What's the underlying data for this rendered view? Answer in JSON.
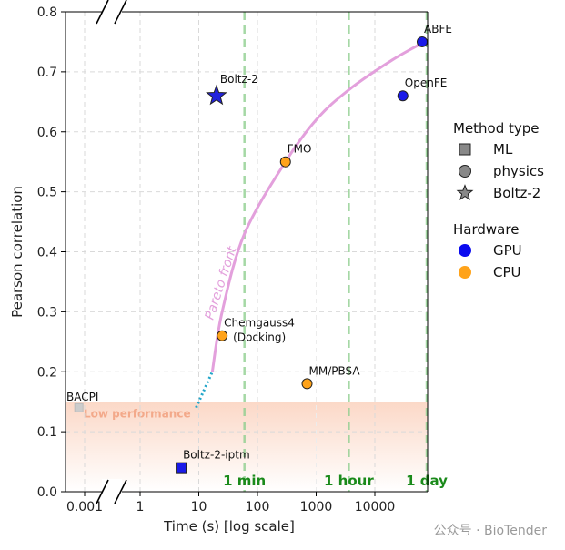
{
  "chart_data": {
    "type": "scatter",
    "title": "",
    "xlabel": "Time (s) [log scale]",
    "ylabel": "Pearson correlation",
    "xscale": "log (broken axis)",
    "ylim": [
      0,
      0.8
    ],
    "xticks": [
      "0.001",
      "1",
      "10",
      "100",
      "1000",
      "10000"
    ],
    "yticks": [
      "0.0",
      "0.1",
      "0.2",
      "0.3",
      "0.4",
      "0.5",
      "0.6",
      "0.7",
      "0.8"
    ],
    "grid": true,
    "points": [
      {
        "label": "BACPI",
        "x": 0.0005,
        "y": 0.14,
        "method": "ML",
        "hardware": "GPU",
        "color": "#cccccc"
      },
      {
        "label": "Boltz-2",
        "x": 20,
        "y": 0.66,
        "method": "Boltz-2",
        "hardware": "GPU",
        "color": "#2222dd"
      },
      {
        "label": "Boltz-2-iptm",
        "x": 5,
        "y": 0.04,
        "method": "ML",
        "hardware": "GPU",
        "color": "#1a1ae8"
      },
      {
        "label": "Chemgauss4",
        "label2": "(Docking)",
        "x": 25,
        "y": 0.26,
        "method": "physics",
        "hardware": "CPU",
        "color": "#ffa31a"
      },
      {
        "label": "FMO",
        "x": 300,
        "y": 0.55,
        "method": "physics",
        "hardware": "CPU",
        "color": "#ffa31a"
      },
      {
        "label": "MM/PBSA",
        "x": 700,
        "y": 0.18,
        "method": "physics",
        "hardware": "CPU",
        "color": "#ffa31a"
      },
      {
        "label": "OpenFE",
        "x": 30000,
        "y": 0.66,
        "method": "physics",
        "hardware": "GPU",
        "color": "#1a1ae8"
      },
      {
        "label": "ABFE",
        "x": 70000,
        "y": 0.75,
        "method": "physics",
        "hardware": "GPU",
        "color": "#1a1ae8"
      }
    ],
    "time_marks": [
      {
        "label": "1 min",
        "x": 60
      },
      {
        "label": "1 hour",
        "x": 3600
      },
      {
        "label": "1 day",
        "x": 86400
      }
    ],
    "pareto_front": {
      "label": "Pareto front",
      "color": "#e3a0dc",
      "points": [
        [
          17,
          0.2
        ],
        [
          25,
          0.3
        ],
        [
          60,
          0.43
        ],
        [
          300,
          0.55
        ],
        [
          1000,
          0.62
        ],
        [
          3600,
          0.67
        ],
        [
          20000,
          0.72
        ],
        [
          70000,
          0.75
        ]
      ],
      "extrapolated": [
        [
          9,
          0.14
        ],
        [
          17,
          0.2
        ]
      ]
    },
    "low_performance_band": {
      "label": "Low performance",
      "ymin": 0.0,
      "ymax": 0.15
    },
    "legend": {
      "placement": "right",
      "method_title": "Method type",
      "method_items": [
        {
          "label": "ML",
          "marker": "square"
        },
        {
          "label": "physics",
          "marker": "circle"
        },
        {
          "label": "Boltz-2",
          "marker": "star"
        }
      ],
      "hardware_title": "Hardware",
      "hardware_items": [
        {
          "label": "GPU",
          "color": "#0a0aef"
        },
        {
          "label": "CPU",
          "color": "#ffa31a"
        }
      ]
    }
  },
  "watermark": "公众号 · BioTender"
}
